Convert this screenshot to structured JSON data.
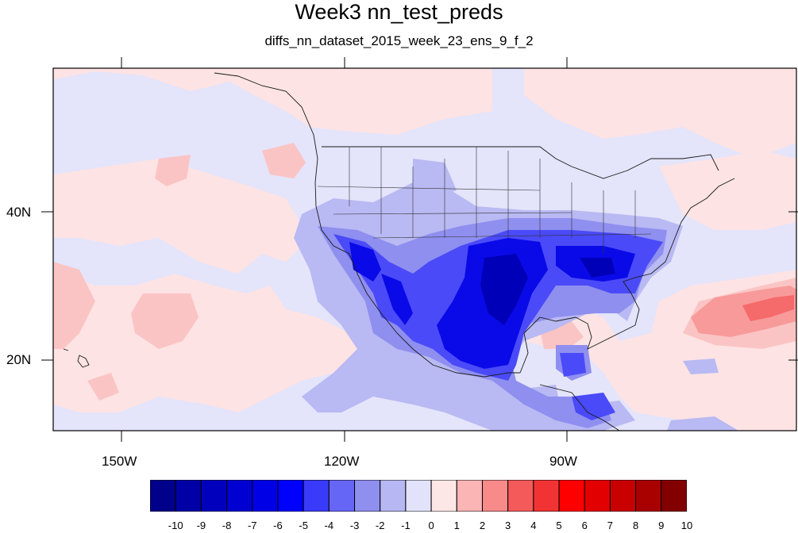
{
  "title": "Week3 nn_test_preds",
  "subtitle": "diffs_nn_dataset_2015_week_23_ens_9_f_2",
  "axes": {
    "lat_labels": [
      "40N",
      "20N"
    ],
    "lon_labels": [
      "150W",
      "120W",
      "90W"
    ]
  },
  "colorbar": {
    "labels": [
      "-10",
      "-9",
      "-8",
      "-7",
      "-6",
      "-5",
      "-4",
      "-3",
      "-2",
      "-1",
      "0",
      "1",
      "2",
      "3",
      "4",
      "5",
      "6",
      "7",
      "8",
      "9",
      "10"
    ],
    "colors": [
      "#00008a",
      "#0000a6",
      "#0000bd",
      "#0000d2",
      "#0000e6",
      "#0000ff",
      "#3a3afa",
      "#6666f6",
      "#8f8ff0",
      "#b7b7f4",
      "#e2e2fb",
      "#fde6e6",
      "#fbb5b5",
      "#f98a8a",
      "#f55a5a",
      "#f23333",
      "#ff0000",
      "#e30000",
      "#c90000",
      "#a90000",
      "#820000"
    ]
  }
}
